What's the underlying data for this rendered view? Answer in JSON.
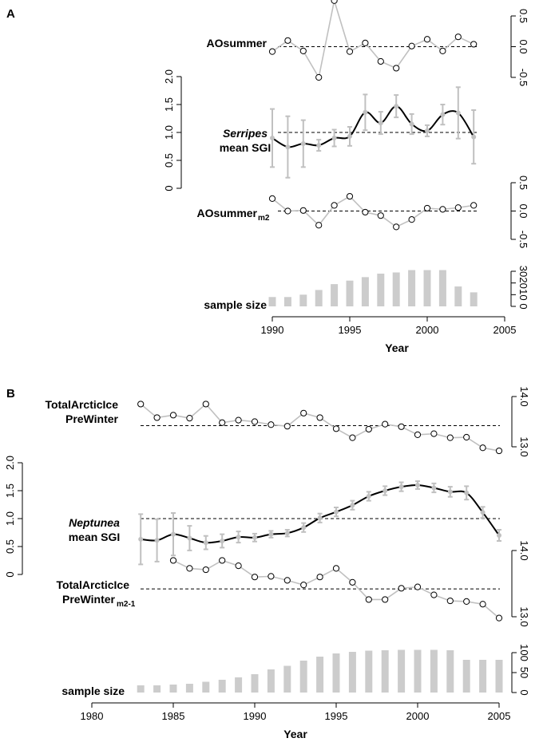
{
  "colors": {
    "gray": "#c0c0c0",
    "black": "#000000",
    "bar": "#cccccc"
  },
  "chart_data": [
    {
      "panel": "A",
      "type": "line",
      "title": "",
      "xlabel": "Year",
      "x_ticks": [
        "1990",
        "1995",
        "2000",
        "2005"
      ],
      "years": [
        1990,
        1991,
        1992,
        1993,
        1994,
        1995,
        1996,
        1997,
        1998,
        1999,
        2000,
        2001,
        2002,
        2003
      ],
      "series": [
        {
          "name": "AOsummer",
          "label": "AOsummer",
          "axis_side": "right",
          "ylim": [
            -0.5,
            0.5
          ],
          "tick_labels": [
            "0.5",
            "0.0",
            "-0.5"
          ],
          "reference": 0,
          "values": [
            -0.08,
            0.1,
            -0.07,
            -0.5,
            0.75,
            -0.08,
            0.06,
            -0.24,
            -0.35,
            0.01,
            0.12,
            -0.07,
            0.16,
            0.04
          ]
        },
        {
          "name": "Serripes mean SGI",
          "label_italic": "Serripes",
          "label_rest": "mean SGI",
          "axis_side": "left",
          "ylim": [
            0,
            2
          ],
          "tick_labels": [
            "0",
            "0.5",
            "1.0",
            "1.5",
            "2.0"
          ],
          "reference": 1,
          "values": [
            0.9,
            0.74,
            0.8,
            0.77,
            0.9,
            0.93,
            1.36,
            1.17,
            1.47,
            1.15,
            1.03,
            1.32,
            1.35,
            0.92
          ],
          "error": [
            0.52,
            0.55,
            0.42,
            0.1,
            0.15,
            0.17,
            0.32,
            0.2,
            0.2,
            0.18,
            0.1,
            0.18,
            0.46,
            0.48
          ]
        },
        {
          "name": "AOsummer_m2",
          "label": "AOsummer",
          "label_sub": "m2",
          "axis_side": "right",
          "ylim": [
            -0.5,
            0.5
          ],
          "tick_labels": [
            "0.5",
            "0.0",
            "-0.5"
          ],
          "reference": 0,
          "values": [
            0.22,
            0.0,
            0.01,
            -0.25,
            0.1,
            0.26,
            -0.02,
            -0.08,
            -0.28,
            -0.15,
            0.05,
            0.03,
            0.06,
            0.1
          ]
        },
        {
          "name": "sample size",
          "label": "sample size",
          "type": "bar",
          "axis_side": "right",
          "ylim": [
            0,
            30
          ],
          "tick_labels": [
            "30",
            "20",
            "10",
            "0"
          ],
          "values": [
            8,
            8,
            10,
            14,
            19,
            22,
            25,
            28,
            29,
            31,
            31,
            31,
            17,
            12
          ]
        }
      ]
    },
    {
      "panel": "B",
      "type": "line",
      "title": "",
      "xlabel": "Year",
      "x_ticks": [
        "1980",
        "1985",
        "1990",
        "1995",
        "2000",
        "2005"
      ],
      "years": [
        1983,
        1984,
        1985,
        1986,
        1987,
        1988,
        1989,
        1990,
        1991,
        1992,
        1993,
        1994,
        1995,
        1996,
        1997,
        1998,
        1999,
        2000,
        2001,
        2002,
        2003,
        2004,
        2005
      ],
      "series": [
        {
          "name": "TotalArcticIce PreWinter",
          "label_line1": "TotalArcticIce",
          "label_line2": "PreWinter",
          "axis_side": "right",
          "ylim": [
            13.0,
            14.0
          ],
          "tick_labels": [
            "14.0",
            "13.0"
          ],
          "reference": 13.42,
          "values": [
            13.85,
            13.58,
            13.63,
            13.57,
            13.85,
            13.48,
            13.53,
            13.5,
            13.44,
            13.41,
            13.67,
            13.58,
            13.36,
            13.18,
            13.35,
            13.45,
            13.4,
            13.24,
            13.26,
            13.18,
            13.19,
            12.98,
            12.92
          ]
        },
        {
          "name": "Neptunea mean SGI",
          "label_italic": "Neptunea",
          "label_rest": "mean SGI",
          "axis_side": "left",
          "ylim": [
            0,
            2
          ],
          "tick_labels": [
            "0",
            "0.5",
            "1.0",
            "1.5",
            "2.0"
          ],
          "reference": 1,
          "values": [
            0.63,
            0.61,
            0.72,
            0.65,
            0.57,
            0.6,
            0.67,
            0.66,
            0.72,
            0.74,
            0.84,
            1.01,
            1.12,
            1.24,
            1.4,
            1.5,
            1.57,
            1.6,
            1.55,
            1.48,
            1.46,
            1.11,
            0.7
          ],
          "error": [
            0.45,
            0.38,
            0.38,
            0.22,
            0.12,
            0.12,
            0.1,
            0.07,
            0.06,
            0.06,
            0.08,
            0.08,
            0.08,
            0.08,
            0.08,
            0.08,
            0.08,
            0.07,
            0.08,
            0.09,
            0.12,
            0.1,
            0.1
          ]
        },
        {
          "name": "TotalArcticIce PreWinter_m2-1",
          "label_line1": "TotalArcticIce",
          "label_line2": "PreWinter",
          "label_sub": "m2-1",
          "axis_side": "right",
          "ylim": [
            13.0,
            14.0
          ],
          "tick_labels": [
            "14.0",
            "13.0"
          ],
          "reference": 13.42,
          "values": [
            null,
            null,
            13.85,
            13.73,
            13.71,
            13.85,
            13.77,
            13.6,
            13.61,
            13.55,
            13.48,
            13.6,
            13.73,
            13.52,
            13.26,
            13.26,
            13.43,
            13.45,
            13.33,
            13.24,
            13.23,
            13.19,
            12.98
          ]
        },
        {
          "name": "sample size",
          "label": "sample size",
          "type": "bar",
          "axis_side": "right",
          "ylim": [
            0,
            100
          ],
          "tick_labels": [
            "100",
            "50",
            "0"
          ],
          "values": [
            18,
            18,
            20,
            22,
            27,
            32,
            38,
            46,
            58,
            67,
            80,
            90,
            98,
            102,
            105,
            106,
            107,
            107,
            107,
            106,
            82,
            82,
            82
          ]
        }
      ]
    }
  ]
}
